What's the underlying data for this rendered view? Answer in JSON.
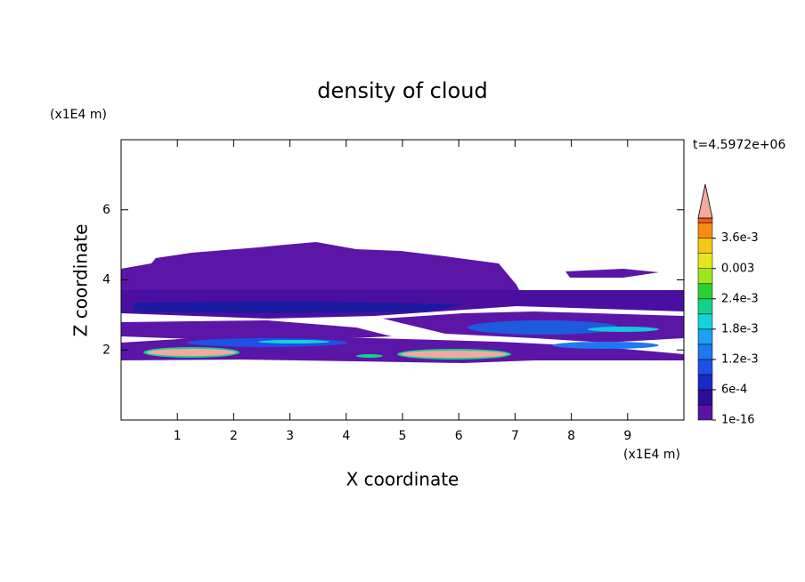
{
  "chart_data": {
    "type": "contour",
    "title": "density of cloud",
    "xlabel": "X coordinate",
    "ylabel": "Z coordinate",
    "xunit": "(x1E4 m)",
    "yunit": "(x1E4 m)",
    "annotation": "t=4.5972e+06",
    "xlim": [
      0,
      10
    ],
    "xticks": [
      1,
      2,
      3,
      4,
      5,
      6,
      7,
      8,
      9
    ],
    "ylim": [
      0,
      8
    ],
    "yticks": [
      2,
      4,
      6
    ],
    "colorbar": {
      "clim": [
        0,
        0.004
      ],
      "ticks": [
        {
          "value": 1e-16,
          "label": "1e-16"
        },
        {
          "value": 0.0006,
          "label": "6e-4"
        },
        {
          "value": 0.0012,
          "label": "1.2e-3"
        },
        {
          "value": 0.0018,
          "label": "1.8e-3"
        },
        {
          "value": 0.0024,
          "label": "2.4e-3"
        },
        {
          "value": 0.003,
          "label": "0.003"
        },
        {
          "value": 0.0036,
          "label": "3.6e-3"
        }
      ],
      "colors": [
        "#5a12a8",
        "#2a0f96",
        "#1c28c8",
        "#1e50e6",
        "#1e78f0",
        "#1ea0f0",
        "#14d2dc",
        "#14d28c",
        "#28d232",
        "#a0e61e",
        "#e6e61e",
        "#f5c814",
        "#f58c14",
        "#f55a14",
        "#e61e1e"
      ],
      "extend_color": "#f4a8a0"
    }
  }
}
